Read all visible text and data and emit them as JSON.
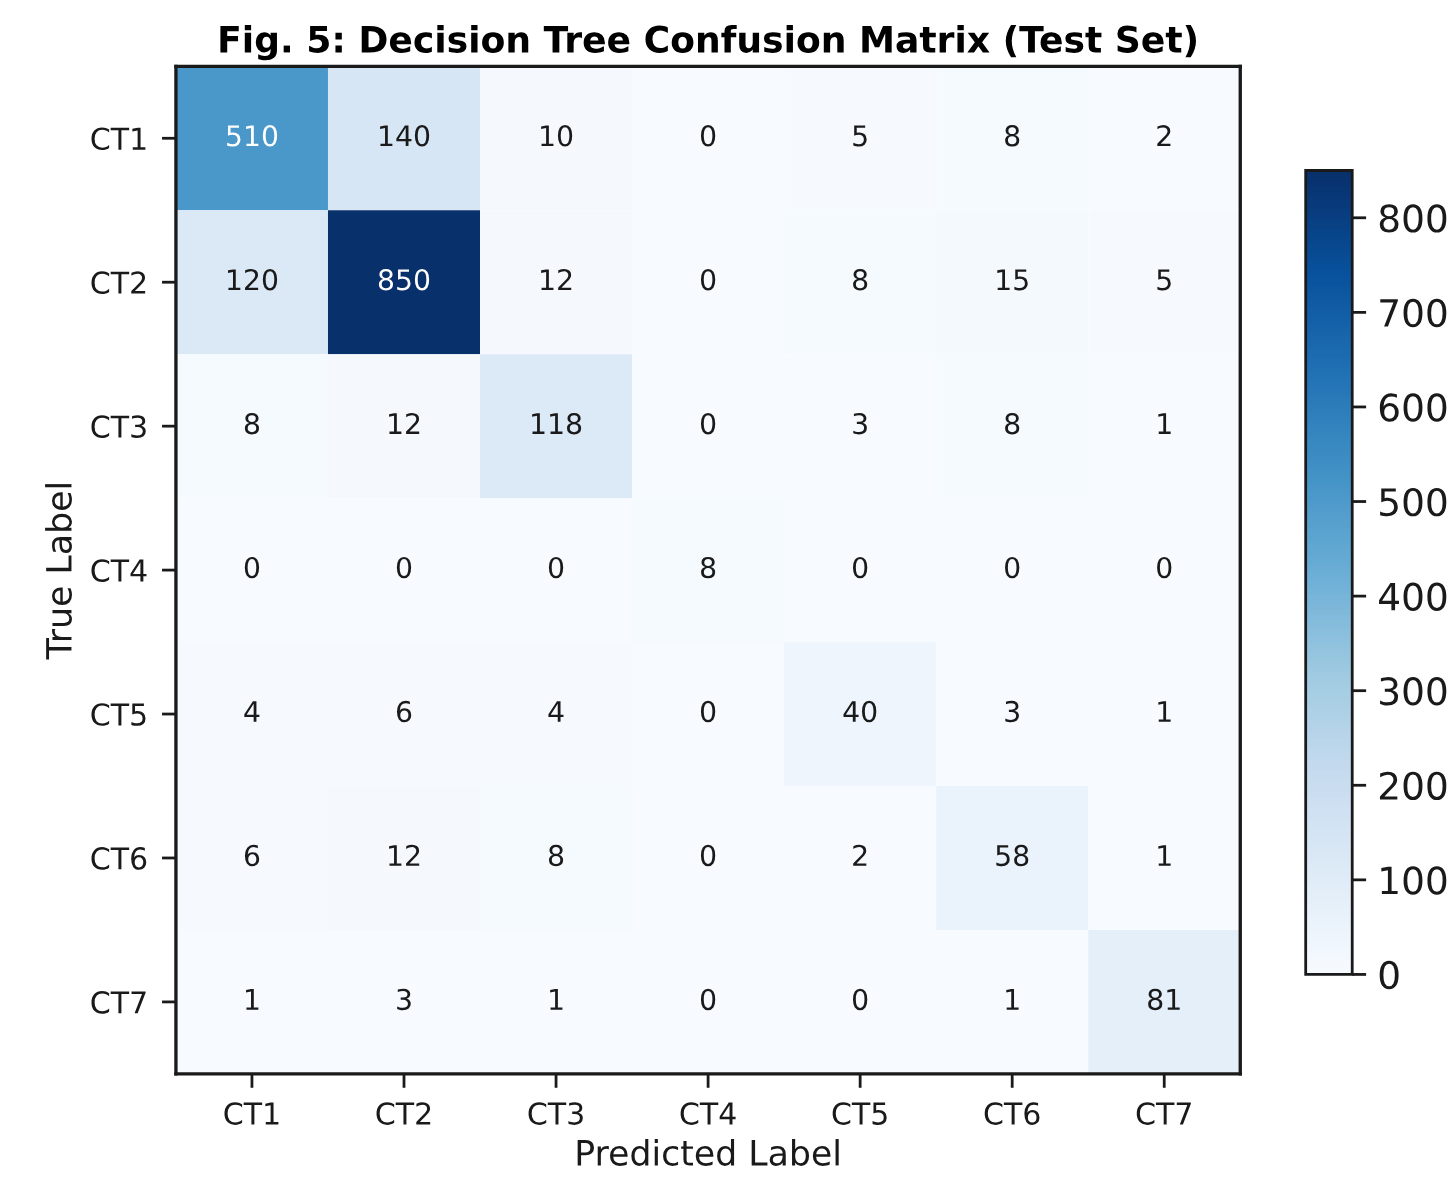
{
  "chart_data": {
    "type": "heatmap",
    "title": "Fig. 5: Decision Tree Confusion Matrix (Test Set)",
    "xlabel": "Predicted Label",
    "ylabel": "True Label",
    "categories": [
      "CT1",
      "CT2",
      "CT3",
      "CT4",
      "CT5",
      "CT6",
      "CT7"
    ],
    "y_categories": [
      "CT1",
      "CT2",
      "CT3",
      "CT4",
      "CT5",
      "CT6",
      "CT7"
    ],
    "cells": [
      [
        510,
        140,
        10,
        0,
        5,
        8,
        2
      ],
      [
        120,
        850,
        12,
        0,
        8,
        15,
        5
      ],
      [
        8,
        12,
        118,
        0,
        3,
        8,
        1
      ],
      [
        0,
        0,
        0,
        8,
        0,
        0,
        0
      ],
      [
        4,
        6,
        4,
        0,
        40,
        3,
        1
      ],
      [
        6,
        12,
        8,
        0,
        2,
        58,
        1
      ],
      [
        1,
        3,
        1,
        0,
        0,
        1,
        81
      ]
    ],
    "clim": [
      0,
      850
    ],
    "cticks": [
      0,
      100,
      200,
      300,
      400,
      500,
      600,
      700,
      800
    ],
    "data_labels": true
  }
}
